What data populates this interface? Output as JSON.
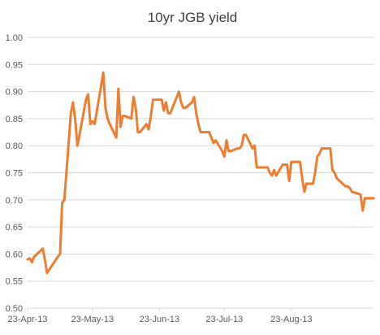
{
  "chart_data": {
    "type": "line",
    "title": "10yr JGB yield",
    "xlabel": "",
    "ylabel": "",
    "ylim": [
      0.5,
      1.0
    ],
    "yticks": [
      "0.50",
      "0.55",
      "0.60",
      "0.65",
      "0.70",
      "0.75",
      "0.80",
      "0.85",
      "0.90",
      "0.95",
      "1.00"
    ],
    "xticks": [
      {
        "label": "23-Apr-13",
        "date": "2013-04-23"
      },
      {
        "label": "23-May-13",
        "date": "2013-05-23"
      },
      {
        "label": "23-Jun-13",
        "date": "2013-06-23"
      },
      {
        "label": "23-Jul-13",
        "date": "2013-07-23"
      },
      {
        "label": "23-Aug-13",
        "date": "2013-08-23"
      }
    ],
    "xlim": [
      "2013-04-23",
      "2013-09-30"
    ],
    "grid": true,
    "legend": "none",
    "series": [
      {
        "color": "#ed7d31",
        "x": [
          "2013-04-23",
          "2013-04-24",
          "2013-04-25",
          "2013-04-26",
          "2013-04-30",
          "2013-05-01",
          "2013-05-02",
          "2013-05-07",
          "2013-05-08",
          "2013-05-09",
          "2013-05-10",
          "2013-05-13",
          "2013-05-14",
          "2013-05-15",
          "2013-05-16",
          "2013-05-17",
          "2013-05-20",
          "2013-05-21",
          "2013-05-22",
          "2013-05-23",
          "2013-05-24",
          "2013-05-27",
          "2013-05-28",
          "2013-05-29",
          "2013-05-30",
          "2013-05-31",
          "2013-06-03",
          "2013-06-04",
          "2013-06-05",
          "2013-06-06",
          "2013-06-07",
          "2013-06-10",
          "2013-06-11",
          "2013-06-12",
          "2013-06-13",
          "2013-06-14",
          "2013-06-17",
          "2013-06-18",
          "2013-06-19",
          "2013-06-20",
          "2013-06-21",
          "2013-06-24",
          "2013-06-25",
          "2013-06-26",
          "2013-06-27",
          "2013-06-28",
          "2013-07-01",
          "2013-07-02",
          "2013-07-03",
          "2013-07-04",
          "2013-07-05",
          "2013-07-08",
          "2013-07-09",
          "2013-07-10",
          "2013-07-11",
          "2013-07-12",
          "2013-07-16",
          "2013-07-17",
          "2013-07-18",
          "2013-07-19",
          "2013-07-22",
          "2013-07-23",
          "2013-07-24",
          "2013-07-25",
          "2013-07-26",
          "2013-07-29",
          "2013-07-30",
          "2013-07-31",
          "2013-08-01",
          "2013-08-02",
          "2013-08-05",
          "2013-08-06",
          "2013-08-07",
          "2013-08-08",
          "2013-08-09",
          "2013-08-12",
          "2013-08-13",
          "2013-08-14",
          "2013-08-15",
          "2013-08-16",
          "2013-08-19",
          "2013-08-20",
          "2013-08-21",
          "2013-08-22",
          "2013-08-23",
          "2013-08-26",
          "2013-08-27",
          "2013-08-28",
          "2013-08-29",
          "2013-08-30",
          "2013-09-02",
          "2013-09-03",
          "2013-09-04",
          "2013-09-05",
          "2013-09-06",
          "2013-09-09",
          "2013-09-10",
          "2013-09-11",
          "2013-09-12",
          "2013-09-13",
          "2013-09-17",
          "2013-09-18",
          "2013-09-19",
          "2013-09-20",
          "2013-09-24",
          "2013-09-25",
          "2013-09-26",
          "2013-09-27",
          "2013-09-30"
        ],
        "values": [
          0.59,
          0.592,
          0.585,
          0.595,
          0.61,
          0.59,
          0.565,
          0.595,
          0.6,
          0.695,
          0.7,
          0.86,
          0.88,
          0.85,
          0.8,
          0.82,
          0.885,
          0.895,
          0.84,
          0.845,
          0.84,
          0.91,
          0.935,
          0.87,
          0.85,
          0.84,
          0.815,
          0.905,
          0.835,
          0.855,
          0.855,
          0.85,
          0.89,
          0.87,
          0.825,
          0.825,
          0.84,
          0.83,
          0.855,
          0.885,
          0.885,
          0.885,
          0.865,
          0.88,
          0.86,
          0.86,
          0.89,
          0.9,
          0.88,
          0.87,
          0.87,
          0.88,
          0.89,
          0.86,
          0.84,
          0.825,
          0.825,
          0.815,
          0.805,
          0.81,
          0.79,
          0.78,
          0.81,
          0.79,
          0.79,
          0.795,
          0.795,
          0.8,
          0.82,
          0.82,
          0.795,
          0.8,
          0.76,
          0.76,
          0.76,
          0.76,
          0.75,
          0.745,
          0.755,
          0.745,
          0.765,
          0.765,
          0.765,
          0.735,
          0.77,
          0.77,
          0.77,
          0.74,
          0.715,
          0.73,
          0.73,
          0.75,
          0.78,
          0.785,
          0.795,
          0.795,
          0.795,
          0.755,
          0.75,
          0.74,
          0.725,
          0.725,
          0.722,
          0.715,
          0.71,
          0.68,
          0.703,
          0.703,
          0.703
        ]
      }
    ]
  }
}
